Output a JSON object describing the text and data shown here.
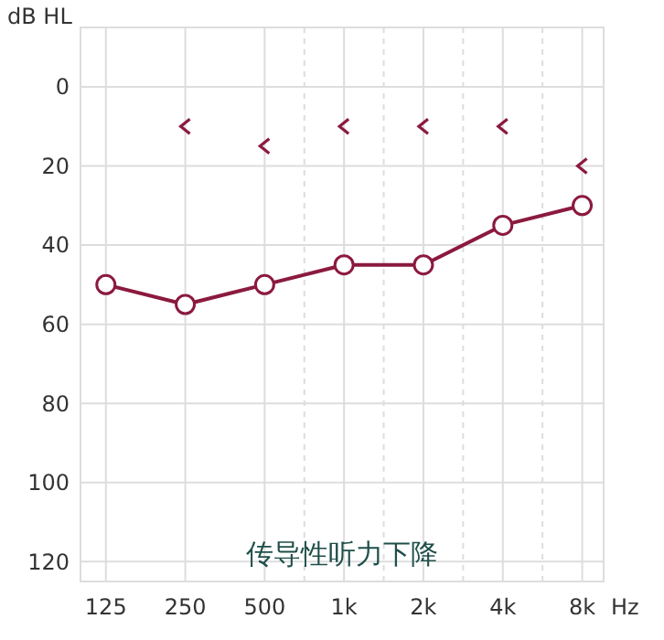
{
  "chart_data": {
    "type": "line",
    "ylabel": "dB HL",
    "xlabel": "Hz",
    "categories": [
      "125",
      "250",
      "500",
      "1k",
      "2k",
      "4k",
      "8k"
    ],
    "ylim": [
      125,
      -15
    ],
    "yticks": [
      0,
      20,
      40,
      60,
      80,
      100,
      120
    ],
    "grid": true,
    "annotations": [
      "传导性听力下降"
    ],
    "series": [
      {
        "color": "#8b1a3e",
        "marker": "circle",
        "line_style": "solid",
        "values": [
          50,
          55,
          50,
          45,
          45,
          35,
          30
        ]
      },
      {
        "type": "scatter",
        "color": "#8b1a3e",
        "marker": "cross",
        "values": [
          null,
          10,
          15,
          10,
          10,
          10,
          20
        ]
      }
    ]
  }
}
